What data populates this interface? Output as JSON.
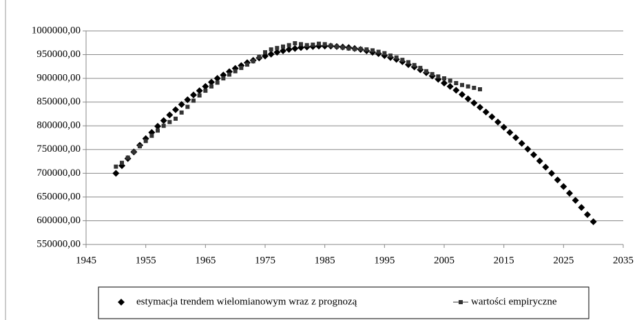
{
  "chart_data": {
    "type": "scatter",
    "xlim": [
      1945,
      2035
    ],
    "xticks": [
      1945,
      1955,
      1965,
      1975,
      1985,
      1995,
      2005,
      2015,
      2025,
      2035
    ],
    "ylim": [
      550000,
      1000000
    ],
    "yticks": [
      {
        "value": 550000,
        "label": "550000,00"
      },
      {
        "value": 600000,
        "label": "600000,00"
      },
      {
        "value": 650000,
        "label": "650000,00"
      },
      {
        "value": 700000,
        "label": "700000,00"
      },
      {
        "value": 750000,
        "label": "750000,00"
      },
      {
        "value": 800000,
        "label": "800000,00"
      },
      {
        "value": 850000,
        "label": "850000,00"
      },
      {
        "value": 900000,
        "label": "900000,00"
      },
      {
        "value": 950000,
        "label": "950000,00"
      },
      {
        "value": 1000000,
        "label": "1000000,00"
      }
    ],
    "grid": true,
    "legend": "bottom",
    "series": [
      {
        "name": "estymacja trendem wielomianowym wraz z prognozą",
        "color": "#000000",
        "marker": "diamond",
        "x": [
          1950,
          1951,
          1952,
          1953,
          1954,
          1955,
          1956,
          1957,
          1958,
          1959,
          1960,
          1961,
          1962,
          1963,
          1964,
          1965,
          1966,
          1967,
          1968,
          1969,
          1970,
          1971,
          1972,
          1973,
          1974,
          1975,
          1976,
          1977,
          1978,
          1979,
          1980,
          1981,
          1982,
          1983,
          1984,
          1985,
          1986,
          1987,
          1988,
          1989,
          1990,
          1991,
          1992,
          1993,
          1994,
          1995,
          1996,
          1997,
          1998,
          1999,
          2000,
          2001,
          2002,
          2003,
          2004,
          2005,
          2006,
          2007,
          2008,
          2009,
          2010,
          2011,
          2012,
          2013,
          2014,
          2015,
          2016,
          2017,
          2018,
          2019,
          2020,
          2021,
          2022,
          2023,
          2024,
          2025,
          2026,
          2027,
          2028,
          2029,
          2030
        ],
        "values": [
          700000,
          716000,
          731000,
          745000,
          759000,
          773000,
          786000,
          799000,
          811000,
          823000,
          834000,
          845000,
          855000,
          865000,
          874000,
          883000,
          892000,
          900000,
          907000,
          914000,
          921000,
          927000,
          933000,
          938000,
          943000,
          947000,
          951000,
          955000,
          958000,
          961000,
          963000,
          965000,
          966000,
          967000,
          968000,
          968000,
          968000,
          967000,
          966000,
          965000,
          963000,
          961000,
          958000,
          955000,
          952000,
          948000,
          944000,
          940000,
          935000,
          929000,
          924000,
          918000,
          912000,
          905000,
          898000,
          890000,
          883000,
          875000,
          866000,
          857000,
          848000,
          839000,
          829000,
          819000,
          808000,
          797000,
          786000,
          775000,
          763000,
          751000,
          739000,
          726000,
          713000,
          700000,
          686000,
          672000,
          658000,
          643000,
          628000,
          613000,
          598000
        ]
      },
      {
        "name": "wartości empiryczne",
        "color": "#333333",
        "marker": "square",
        "x": [
          1950,
          1951,
          1952,
          1953,
          1954,
          1955,
          1956,
          1957,
          1958,
          1959,
          1960,
          1961,
          1962,
          1963,
          1964,
          1965,
          1966,
          1967,
          1968,
          1969,
          1970,
          1971,
          1972,
          1973,
          1974,
          1975,
          1976,
          1977,
          1978,
          1979,
          1980,
          1981,
          1982,
          1983,
          1984,
          1985,
          1986,
          1987,
          1988,
          1989,
          1990,
          1991,
          1992,
          1993,
          1994,
          1995,
          1996,
          1997,
          1998,
          1999,
          2000,
          2001,
          2002,
          2003,
          2004,
          2005,
          2006,
          2007,
          2008,
          2009,
          2010,
          2011
        ],
        "values": [
          714000,
          722000,
          733000,
          745000,
          757000,
          768000,
          779000,
          790000,
          800000,
          808000,
          815000,
          828000,
          840000,
          853000,
          864000,
          874000,
          883000,
          891000,
          900000,
          908000,
          915000,
          922000,
          929000,
          936000,
          945000,
          955000,
          961000,
          964000,
          967000,
          970000,
          974000,
          972000,
          970000,
          971000,
          973000,
          972000,
          969000,
          967000,
          965000,
          963000,
          962000,
          962000,
          961000,
          959000,
          956000,
          953000,
          948000,
          944000,
          939000,
          934000,
          928000,
          922000,
          915000,
          909000,
          904000,
          900000,
          895000,
          890000,
          886000,
          883000,
          880000,
          877000
        ]
      }
    ]
  }
}
